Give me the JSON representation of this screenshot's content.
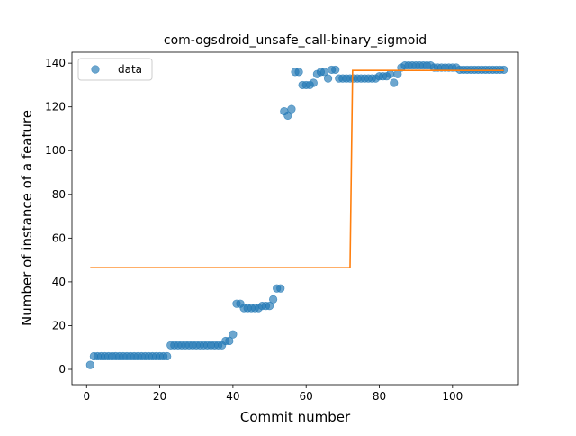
{
  "chart_data": {
    "type": "scatter",
    "title": "com-ogsdroid_unsafe_call-binary_sigmoid",
    "xlabel": "Commit number",
    "ylabel": "Number of instance of a feature",
    "xlim": [
      -4,
      118
    ],
    "ylim": [
      -7,
      145
    ],
    "xticks": [
      0,
      20,
      40,
      60,
      80,
      100
    ],
    "yticks": [
      0,
      20,
      40,
      60,
      80,
      100,
      120,
      140
    ],
    "grid": false,
    "legend": {
      "position": "top-left",
      "entries": [
        "data"
      ]
    },
    "colors": {
      "points": "#1f77b4",
      "fit": "#ff7f0e"
    },
    "series": [
      {
        "name": "data",
        "kind": "scatter",
        "x": [
          1,
          2,
          3,
          4,
          5,
          6,
          7,
          8,
          9,
          10,
          11,
          12,
          13,
          14,
          15,
          16,
          17,
          18,
          19,
          20,
          21,
          22,
          23,
          24,
          25,
          26,
          27,
          28,
          29,
          30,
          31,
          32,
          33,
          34,
          35,
          36,
          37,
          38,
          39,
          40,
          41,
          42,
          43,
          44,
          45,
          46,
          47,
          48,
          49,
          50,
          51,
          52,
          53,
          54,
          55,
          56,
          57,
          58,
          59,
          60,
          61,
          62,
          63,
          64,
          65,
          66,
          67,
          68,
          69,
          70,
          71,
          72,
          73,
          74,
          75,
          76,
          77,
          78,
          79,
          80,
          81,
          82,
          83,
          84,
          85,
          86,
          87,
          88,
          89,
          90,
          91,
          92,
          93,
          94,
          95,
          96,
          97,
          98,
          99,
          100,
          101,
          102,
          103,
          104,
          105,
          106,
          107,
          108,
          109,
          110,
          111,
          112,
          113,
          114
        ],
        "y": [
          2,
          6,
          6,
          6,
          6,
          6,
          6,
          6,
          6,
          6,
          6,
          6,
          6,
          6,
          6,
          6,
          6,
          6,
          6,
          6,
          6,
          6,
          11,
          11,
          11,
          11,
          11,
          11,
          11,
          11,
          11,
          11,
          11,
          11,
          11,
          11,
          11,
          13,
          13,
          16,
          30,
          30,
          28,
          28,
          28,
          28,
          28,
          29,
          29,
          29,
          32,
          37,
          37,
          118,
          116,
          119,
          136,
          136,
          130,
          130,
          130,
          131,
          135,
          136,
          136,
          133,
          137,
          137,
          133,
          133,
          133,
          133,
          133,
          133,
          133,
          133,
          133,
          133,
          133,
          134,
          134,
          134,
          135,
          131,
          135,
          138,
          139,
          139,
          139,
          139,
          139,
          139,
          139,
          139,
          138,
          138,
          138,
          138,
          138,
          138,
          138,
          137,
          137,
          137,
          137,
          137,
          137,
          137,
          137,
          137,
          137,
          137,
          137,
          137
        ]
      },
      {
        "name": "",
        "kind": "line",
        "x": [
          1,
          72,
          72.7,
          114
        ],
        "y": [
          46.5,
          46.5,
          136.7,
          136.7
        ]
      }
    ]
  }
}
